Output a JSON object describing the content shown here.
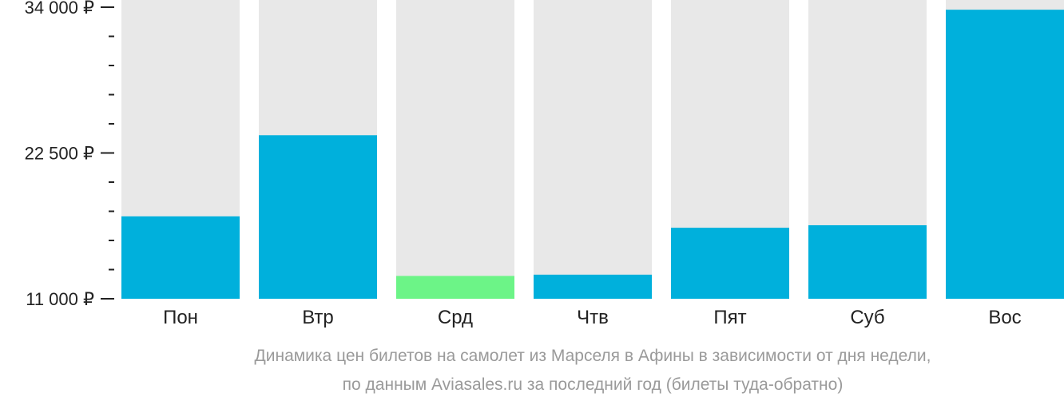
{
  "chart_data": {
    "type": "bar",
    "categories": [
      "Пон",
      "Втр",
      "Срд",
      "Чтв",
      "Пят",
      "Суб",
      "Вос"
    ],
    "values": [
      17500,
      23900,
      12800,
      12900,
      16600,
      16800,
      33800
    ],
    "highlight_index": 2,
    "ylim": [
      11000,
      34000
    ],
    "yticks": [
      {
        "value": 11000,
        "label": "11 000 ₽"
      },
      {
        "value": 22500,
        "label": "22 500 ₽"
      },
      {
        "value": 34000,
        "label": "34 000 ₽"
      }
    ],
    "minor_ticks": [
      13300,
      15600,
      17900,
      20200,
      24800,
      27100,
      29400,
      31700
    ],
    "caption_lines": [
      "Динамика цен билетов на самолет из Марселя в Афины в зависимости от дня недели,",
      "по данным Aviasales.ru за последний год (билеты туда-обратно)"
    ],
    "colors": {
      "bar": "#00b0dc",
      "highlight": "#6cf487",
      "background_bar": "#e8e8e8",
      "axis": "#222222",
      "caption": "#9a9a9a"
    }
  }
}
